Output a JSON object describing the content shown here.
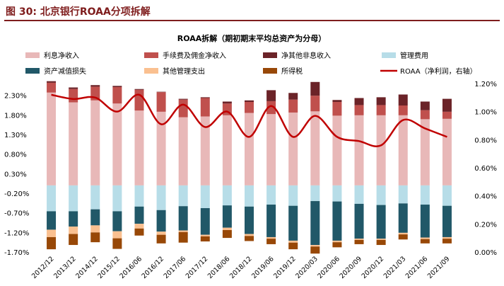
{
  "figure": {
    "title": "图 30:  北京银行ROAA分项拆解"
  },
  "chart_data": {
    "type": "bar",
    "title": "ROAA拆解（期初期末平均总资产为分母）",
    "categories": [
      "2012/12",
      "2013/12",
      "2014/12",
      "2015/12",
      "2016/06",
      "2016/12",
      "2017/06",
      "2017/12",
      "2018/06",
      "2018/12",
      "2019/06",
      "2019/12",
      "2020/03",
      "2020/06",
      "2020/09",
      "2020/12",
      "2021/03",
      "2021/06",
      "2021/09"
    ],
    "left_axis": {
      "ticks": [
        2.3,
        1.8,
        1.3,
        0.8,
        0.3,
        -0.2,
        -0.7,
        -1.2,
        -1.7
      ],
      "tick_labels": [
        "2.30%",
        "1.80%",
        "1.30%",
        "0.80%",
        "0.30%",
        "-0.20%",
        "-0.70%",
        "-1.20%",
        "-1.70%"
      ],
      "ylim": [
        -1.7,
        2.6
      ]
    },
    "right_axis": {
      "ticks": [
        1.2,
        1.0,
        0.8,
        0.6,
        0.4,
        0.2,
        0.0
      ],
      "tick_labels": [
        "1.20%",
        "1.00%",
        "0.80%",
        "0.60%",
        "0.40%",
        "0.20%",
        "0.00%"
      ],
      "ylim": [
        0.0,
        1.2
      ]
    },
    "legend": {
      "placement": "top",
      "items": [
        {
          "label": "利息净收入",
          "color": "#e8b8b8",
          "kind": "box"
        },
        {
          "label": "手续费及佣金净收入",
          "color": "#c0504d",
          "kind": "box"
        },
        {
          "label": "净其他非息收入",
          "color": "#6b2328",
          "kind": "box"
        },
        {
          "label": "管理费用",
          "color": "#b7dde8",
          "kind": "box"
        },
        {
          "label": "资产减值损失",
          "color": "#215868",
          "kind": "box"
        },
        {
          "label": "其他管理支出",
          "color": "#fac090",
          "kind": "box"
        },
        {
          "label": "所得税",
          "color": "#984807",
          "kind": "box"
        },
        {
          "label": "ROAA（净利润，右轴）",
          "color": "#c00000",
          "kind": "line"
        }
      ]
    },
    "series": [
      {
        "name": "利息净收入",
        "axis": "left",
        "color": "#e8b8b8",
        "values": [
          2.37,
          2.12,
          2.17,
          2.09,
          1.91,
          1.88,
          1.74,
          1.76,
          1.79,
          1.85,
          1.82,
          1.86,
          1.89,
          1.78,
          1.79,
          1.79,
          1.79,
          1.69,
          1.7
        ]
      },
      {
        "name": "手续费及佣金净收入",
        "axis": "left",
        "color": "#c0504d",
        "values": [
          0.25,
          0.34,
          0.35,
          0.42,
          0.53,
          0.5,
          0.45,
          0.47,
          0.3,
          0.28,
          0.33,
          0.33,
          0.4,
          0.35,
          0.26,
          0.26,
          0.25,
          0.23,
          0.18
        ]
      },
      {
        "name": "净其他非息收入",
        "axis": "left",
        "color": "#6b2328",
        "values": [
          0.04,
          0.04,
          0.04,
          0.03,
          0.02,
          0.01,
          0.02,
          0.02,
          0.05,
          0.04,
          0.28,
          0.17,
          0.35,
          0.05,
          0.18,
          0.2,
          0.28,
          0.22,
          0.33
        ]
      },
      {
        "name": "管理费用",
        "axis": "left",
        "color": "#b7dde8",
        "values": [
          -0.66,
          -0.66,
          -0.61,
          -0.66,
          -0.54,
          -0.63,
          -0.53,
          -0.58,
          -0.51,
          -0.54,
          -0.49,
          -0.52,
          -0.4,
          -0.41,
          -0.47,
          -0.5,
          -0.46,
          -0.49,
          -0.52
        ]
      },
      {
        "name": "资产减值损失",
        "axis": "left",
        "color": "#215868",
        "values": [
          -0.47,
          -0.39,
          -0.41,
          -0.51,
          -0.44,
          -0.55,
          -0.62,
          -0.68,
          -0.57,
          -0.7,
          -0.83,
          -0.89,
          -1.12,
          -1.0,
          -0.89,
          -0.86,
          -0.75,
          -0.84,
          -0.8
        ]
      },
      {
        "name": "其他管理支出",
        "axis": "left",
        "color": "#fac090",
        "values": [
          -0.19,
          -0.19,
          -0.18,
          -0.18,
          -0.12,
          -0.08,
          -0.04,
          -0.04,
          -0.06,
          -0.05,
          -0.04,
          -0.05,
          -0.04,
          -0.04,
          -0.03,
          -0.03,
          -0.04,
          -0.04,
          -0.04
        ]
      },
      {
        "name": "所得税",
        "axis": "left",
        "color": "#984807",
        "values": [
          -0.31,
          -0.28,
          -0.25,
          -0.27,
          -0.18,
          -0.22,
          -0.27,
          -0.13,
          -0.2,
          -0.13,
          -0.14,
          -0.17,
          -0.18,
          -0.13,
          -0.11,
          -0.13,
          -0.13,
          -0.11,
          -0.12
        ]
      },
      {
        "name": "ROAA（净利润，右轴）",
        "axis": "right",
        "type": "line",
        "color": "#c00000",
        "values": [
          1.12,
          1.09,
          1.1,
          1.0,
          1.12,
          0.91,
          1.05,
          0.89,
          1.0,
          0.82,
          1.04,
          0.82,
          0.97,
          0.82,
          0.79,
          0.76,
          0.94,
          0.88,
          0.82
        ]
      }
    ],
    "grid": false
  }
}
